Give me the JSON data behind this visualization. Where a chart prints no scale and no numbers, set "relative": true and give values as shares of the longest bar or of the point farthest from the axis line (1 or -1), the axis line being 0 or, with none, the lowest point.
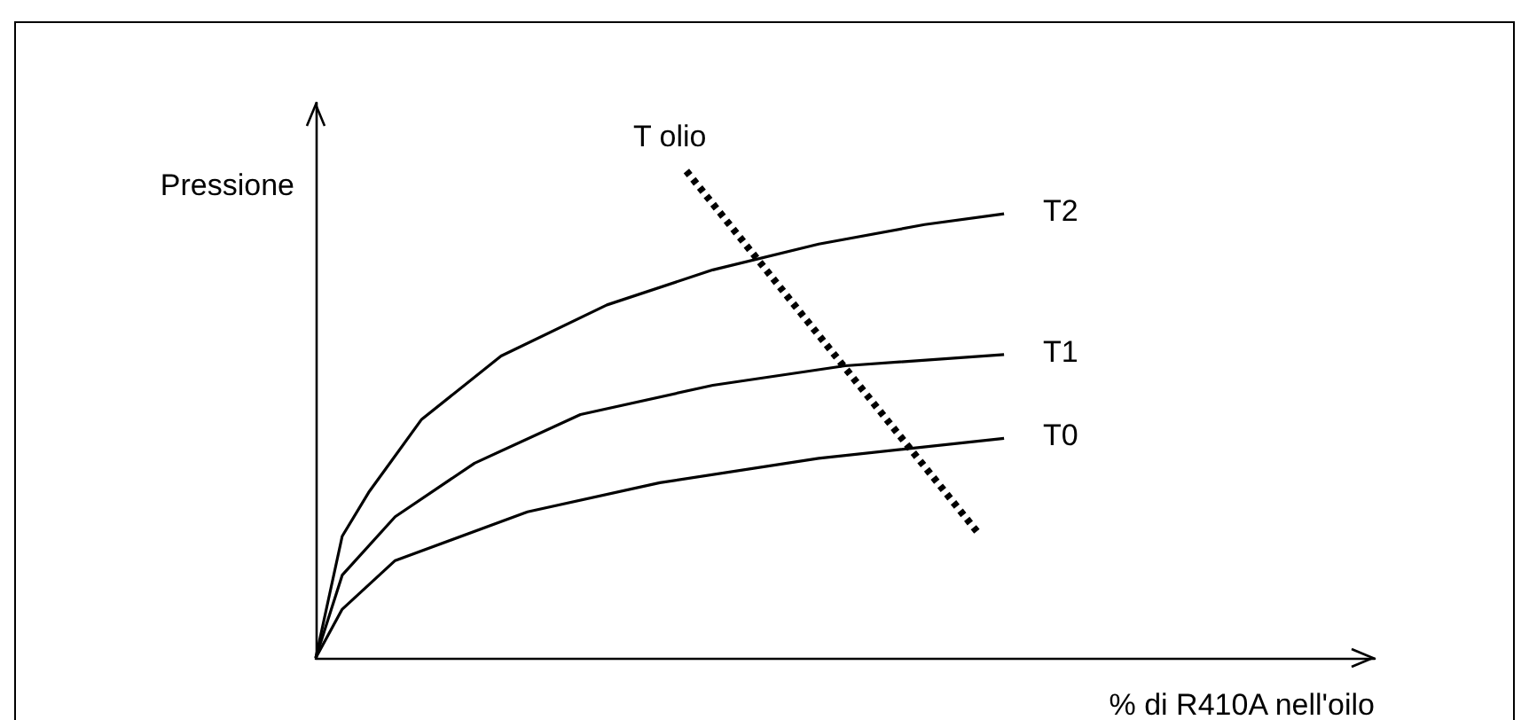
{
  "chart_data": {
    "type": "line",
    "relative": true,
    "xlabel": "% di R410A nell'oilo",
    "ylabel": "Pressione",
    "legend": false,
    "grid": false,
    "marker": "none",
    "line_style": "solid",
    "categories": [
      null,
      null,
      null,
      null,
      null,
      null,
      null,
      null,
      null,
      null,
      null,
      null,
      null,
      null,
      null,
      null,
      null,
      null,
      null,
      null,
      null,
      null,
      null,
      null,
      null,
      null,
      null,
      null,
      null,
      null,
      null,
      null,
      null,
      null,
      null,
      null,
      null,
      null,
      null,
      null,
      null
    ],
    "series": [
      {
        "name": "T2",
        "color": "#000000",
        "values": [
          0,
          0.25,
          0.34,
          null,
          0.49,
          null,
          null,
          0.62,
          null,
          null,
          null,
          0.725,
          null,
          null,
          null,
          0.797,
          null,
          null,
          null,
          0.85,
          null,
          null,
          null,
          0.89,
          null,
          null,
          0.912,
          null,
          null,
          null,
          null,
          null,
          null,
          null,
          null,
          null,
          null,
          null,
          null,
          null,
          null
        ]
      },
      {
        "name": "T1",
        "color": "#000000",
        "values": [
          0,
          0.17,
          null,
          0.29,
          null,
          null,
          0.4,
          null,
          null,
          null,
          0.5,
          null,
          null,
          null,
          null,
          0.56,
          null,
          null,
          null,
          null,
          0.6,
          null,
          null,
          null,
          null,
          null,
          0.623,
          null,
          null,
          null,
          null,
          null,
          null,
          null,
          null,
          null,
          null,
          null,
          null,
          null,
          null
        ]
      },
      {
        "name": "T0",
        "color": "#000000",
        "values": [
          0,
          0.1,
          null,
          0.2,
          null,
          null,
          null,
          null,
          0.3,
          null,
          null,
          null,
          null,
          0.36,
          null,
          null,
          null,
          null,
          null,
          0.41,
          null,
          null,
          null,
          null,
          null,
          null,
          0.451,
          null,
          null,
          null,
          null,
          null,
          null,
          null,
          null,
          null,
          null,
          null,
          null,
          null,
          null
        ]
      },
      {
        "name": "T olio",
        "color": "#000000",
        "line_style": "dotted",
        "values": [
          null,
          null,
          null,
          null,
          null,
          null,
          null,
          null,
          null,
          null,
          null,
          null,
          null,
          null,
          1,
          null,
          null,
          null,
          null,
          null,
          null,
          null,
          null,
          null,
          null,
          0.258,
          null,
          null,
          null,
          null,
          null,
          null,
          null,
          null,
          null,
          null,
          null,
          null,
          null,
          null,
          null
        ]
      }
    ]
  }
}
